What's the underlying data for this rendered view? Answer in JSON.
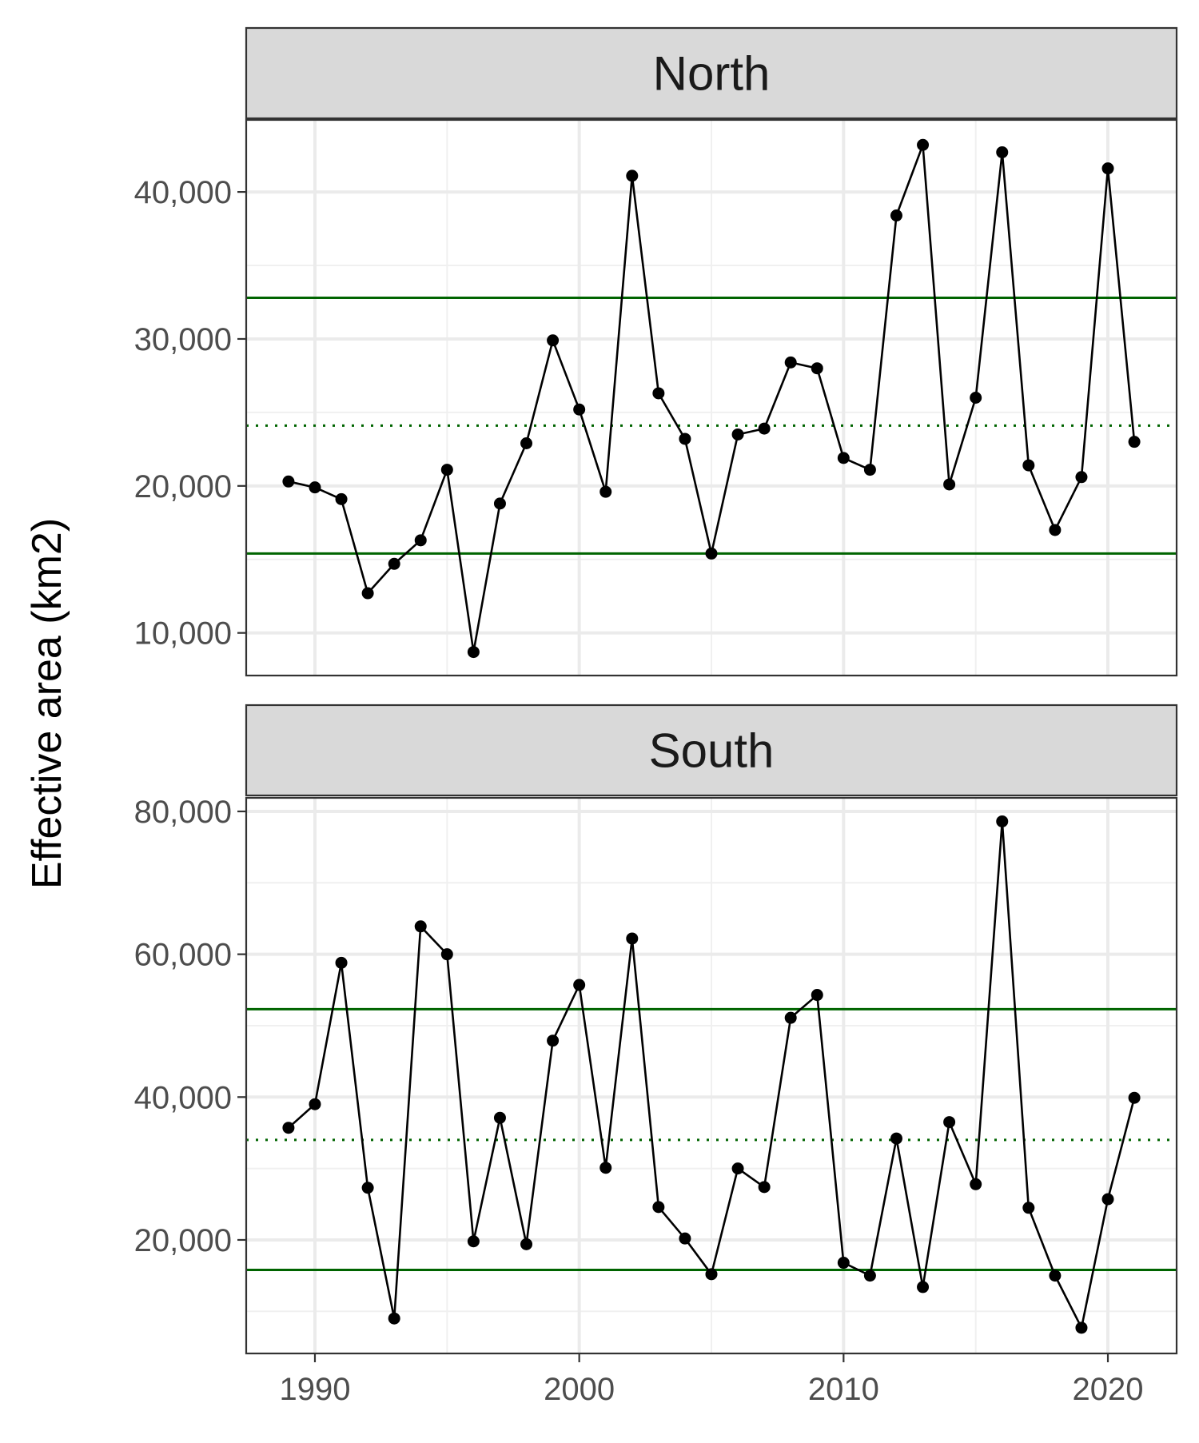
{
  "chart_data": {
    "type": "line",
    "ylabel": "Effective area (km2)",
    "xlabel": "",
    "x_ticks": [
      1990,
      2000,
      2010,
      2020
    ],
    "xlim": [
      1987.4,
      2022.6
    ],
    "grid": true,
    "reference_line_color": "#006400",
    "series_color": "#000000",
    "panels": [
      {
        "name": "North",
        "ylim": [
          7100,
          44900
        ],
        "y_ticks": [
          10000,
          20000,
          30000,
          40000
        ],
        "y_tick_labels": [
          "10,000",
          "20,000",
          "30,000",
          "40,000"
        ],
        "ref_lines": [
          {
            "y": 32800,
            "style": "solid"
          },
          {
            "y": 24100,
            "style": "dotted"
          },
          {
            "y": 15400,
            "style": "solid"
          }
        ],
        "x": [
          1989,
          1990,
          1991,
          1992,
          1993,
          1994,
          1995,
          1996,
          1997,
          1998,
          1999,
          2000,
          2001,
          2002,
          2003,
          2004,
          2005,
          2006,
          2007,
          2008,
          2009,
          2010,
          2011,
          2012,
          2013,
          2014,
          2015,
          2016,
          2017,
          2018,
          2019,
          2020,
          2021
        ],
        "values": [
          20300,
          19900,
          19100,
          12700,
          14700,
          16300,
          21100,
          8700,
          18800,
          22900,
          29900,
          25200,
          19600,
          41100,
          26300,
          23200,
          15400,
          23500,
          23900,
          28400,
          28000,
          21900,
          21100,
          38400,
          43200,
          20100,
          26000,
          42700,
          21400,
          17000,
          20600,
          41600,
          23000
        ]
      },
      {
        "name": "South",
        "ylim": [
          4100,
          81900
        ],
        "y_ticks": [
          20000,
          40000,
          60000,
          80000
        ],
        "y_tick_labels": [
          "20,000",
          "40,000",
          "60,000",
          "80,000"
        ],
        "ref_lines": [
          {
            "y": 52300,
            "style": "solid"
          },
          {
            "y": 34000,
            "style": "dotted"
          },
          {
            "y": 15800,
            "style": "solid"
          }
        ],
        "x": [
          1989,
          1990,
          1991,
          1992,
          1993,
          1994,
          1995,
          1996,
          1997,
          1998,
          1999,
          2000,
          2001,
          2002,
          2003,
          2004,
          2005,
          2006,
          2007,
          2008,
          2009,
          2010,
          2011,
          2012,
          2013,
          2014,
          2015,
          2016,
          2017,
          2018,
          2019,
          2020,
          2021
        ],
        "values": [
          35700,
          39000,
          58800,
          27300,
          9000,
          63900,
          60000,
          19800,
          37100,
          19400,
          47900,
          55700,
          30100,
          62200,
          24600,
          20200,
          15200,
          30000,
          27400,
          51100,
          54300,
          16800,
          15000,
          34200,
          13400,
          36500,
          27800,
          78600,
          24500,
          15000,
          7700,
          25700,
          39900
        ]
      }
    ]
  }
}
